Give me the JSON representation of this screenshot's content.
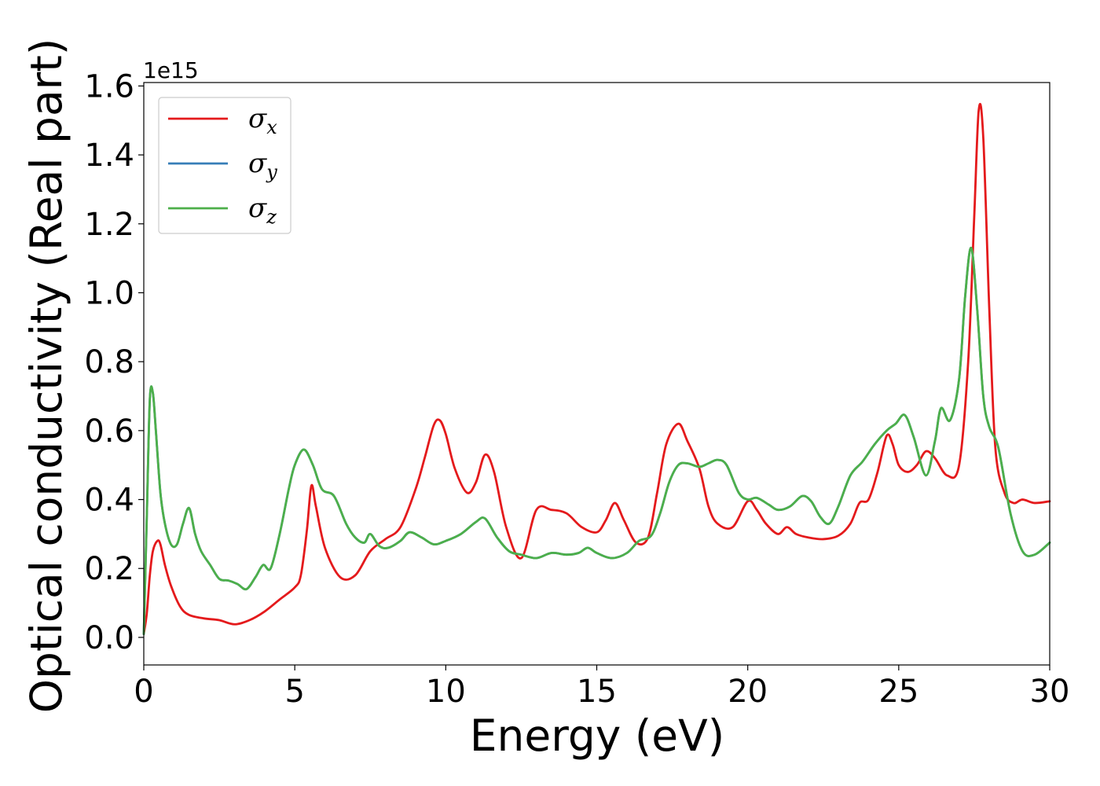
{
  "chart_data": {
    "type": "line",
    "xlabel": "Energy (eV)",
    "ylabel": "Optical conductivity (Real part)",
    "y_offset_label": "1e15",
    "xlim": [
      0,
      30
    ],
    "ylim": [
      -0.08,
      1.61
    ],
    "xticks": [
      0,
      5,
      10,
      15,
      20,
      25,
      30
    ],
    "xtick_labels": [
      "0",
      "5",
      "10",
      "15",
      "20",
      "25",
      "30"
    ],
    "yticks": [
      0.0,
      0.2,
      0.4,
      0.6,
      0.8,
      1.0,
      1.2,
      1.4,
      1.6
    ],
    "ytick_labels": [
      "0.0",
      "0.2",
      "0.4",
      "0.6",
      "0.8",
      "1.0",
      "1.2",
      "1.4",
      "1.6"
    ],
    "grid": false,
    "legend_position": "top-left",
    "series": [
      {
        "name": "σx",
        "legend_symbol": "σ",
        "legend_sub": "x",
        "color": "#e41a1c",
        "x": [
          0,
          0.1,
          0.2,
          0.3,
          0.45,
          0.55,
          0.7,
          0.9,
          1.2,
          1.5,
          2.0,
          2.5,
          3.0,
          3.5,
          4.0,
          4.5,
          5.0,
          5.2,
          5.4,
          5.55,
          5.7,
          6.0,
          6.5,
          7.0,
          7.5,
          8.0,
          8.5,
          9.0,
          9.3,
          9.6,
          9.8,
          10.0,
          10.3,
          10.7,
          11.0,
          11.3,
          11.6,
          12.0,
          12.5,
          13.0,
          13.5,
          14.0,
          14.5,
          15.0,
          15.3,
          15.6,
          15.9,
          16.3,
          16.7,
          17.0,
          17.3,
          17.7,
          18.0,
          18.4,
          18.7,
          19.0,
          19.5,
          20.0,
          20.3,
          20.6,
          21.0,
          21.3,
          21.6,
          22.0,
          22.5,
          23.0,
          23.4,
          23.7,
          24.0,
          24.3,
          24.6,
          24.8,
          25.0,
          25.3,
          25.6,
          25.9,
          26.2,
          26.6,
          27.0,
          27.3,
          27.5,
          27.65,
          27.8,
          28.0,
          28.2,
          28.5,
          28.8,
          29.1,
          29.5,
          30.0
        ],
        "values": [
          0.01,
          0.07,
          0.18,
          0.25,
          0.28,
          0.27,
          0.21,
          0.15,
          0.09,
          0.065,
          0.055,
          0.05,
          0.038,
          0.05,
          0.075,
          0.11,
          0.145,
          0.18,
          0.31,
          0.44,
          0.38,
          0.26,
          0.175,
          0.18,
          0.25,
          0.285,
          0.32,
          0.43,
          0.52,
          0.615,
          0.63,
          0.59,
          0.49,
          0.42,
          0.45,
          0.53,
          0.48,
          0.32,
          0.23,
          0.37,
          0.37,
          0.36,
          0.32,
          0.305,
          0.34,
          0.39,
          0.34,
          0.275,
          0.29,
          0.42,
          0.56,
          0.62,
          0.57,
          0.49,
          0.38,
          0.33,
          0.32,
          0.395,
          0.37,
          0.33,
          0.3,
          0.32,
          0.3,
          0.29,
          0.285,
          0.295,
          0.33,
          0.39,
          0.4,
          0.48,
          0.585,
          0.56,
          0.5,
          0.48,
          0.5,
          0.54,
          0.52,
          0.47,
          0.5,
          0.8,
          1.22,
          1.53,
          1.45,
          0.95,
          0.55,
          0.42,
          0.39,
          0.4,
          0.39,
          0.395
        ]
      },
      {
        "name": "σy",
        "legend_symbol": "σ",
        "legend_sub": "y",
        "color": "#377eb8",
        "x": [
          0,
          0.1,
          0.2,
          0.3,
          0.4,
          0.55,
          0.7,
          0.9,
          1.1,
          1.3,
          1.5,
          1.7,
          1.9,
          2.2,
          2.5,
          2.8,
          3.1,
          3.4,
          3.7,
          3.95,
          4.2,
          4.5,
          4.8,
          5.0,
          5.3,
          5.6,
          5.9,
          6.3,
          6.7,
          7.0,
          7.3,
          7.5,
          7.8,
          8.1,
          8.5,
          8.8,
          9.2,
          9.6,
          10.0,
          10.5,
          11.0,
          11.3,
          11.7,
          12.1,
          12.5,
          13.0,
          13.5,
          14.0,
          14.4,
          14.7,
          15.0,
          15.5,
          16.0,
          16.4,
          16.8,
          17.1,
          17.4,
          17.7,
          18.0,
          18.4,
          18.7,
          19.0,
          19.3,
          19.7,
          20.0,
          20.3,
          20.7,
          21.0,
          21.4,
          21.8,
          22.1,
          22.4,
          22.7,
          23.0,
          23.4,
          23.8,
          24.2,
          24.6,
          24.9,
          25.2,
          25.5,
          25.9,
          26.2,
          26.4,
          26.7,
          27.0,
          27.2,
          27.4,
          27.6,
          27.8,
          28.0,
          28.3,
          28.7,
          29.1,
          29.5,
          30.0
        ],
        "values": [
          0.01,
          0.35,
          0.69,
          0.71,
          0.6,
          0.42,
          0.33,
          0.27,
          0.27,
          0.33,
          0.375,
          0.3,
          0.25,
          0.21,
          0.17,
          0.165,
          0.155,
          0.14,
          0.175,
          0.21,
          0.2,
          0.3,
          0.43,
          0.5,
          0.545,
          0.5,
          0.43,
          0.41,
          0.33,
          0.29,
          0.275,
          0.3,
          0.265,
          0.26,
          0.28,
          0.305,
          0.29,
          0.27,
          0.28,
          0.3,
          0.335,
          0.345,
          0.29,
          0.25,
          0.24,
          0.23,
          0.245,
          0.24,
          0.245,
          0.26,
          0.245,
          0.23,
          0.245,
          0.28,
          0.295,
          0.36,
          0.45,
          0.5,
          0.505,
          0.495,
          0.505,
          0.515,
          0.5,
          0.42,
          0.4,
          0.405,
          0.385,
          0.37,
          0.38,
          0.41,
          0.395,
          0.35,
          0.33,
          0.38,
          0.47,
          0.51,
          0.56,
          0.6,
          0.62,
          0.645,
          0.58,
          0.47,
          0.57,
          0.665,
          0.63,
          0.75,
          0.99,
          1.13,
          0.95,
          0.7,
          0.61,
          0.55,
          0.36,
          0.25,
          0.24,
          0.275
        ]
      },
      {
        "name": "σz",
        "legend_symbol": "σ",
        "legend_sub": "z",
        "color": "#4daf4a",
        "x": [
          0,
          0.1,
          0.2,
          0.3,
          0.4,
          0.55,
          0.7,
          0.9,
          1.1,
          1.3,
          1.5,
          1.7,
          1.9,
          2.2,
          2.5,
          2.8,
          3.1,
          3.4,
          3.7,
          3.95,
          4.2,
          4.5,
          4.8,
          5.0,
          5.3,
          5.6,
          5.9,
          6.3,
          6.7,
          7.0,
          7.3,
          7.5,
          7.8,
          8.1,
          8.5,
          8.8,
          9.2,
          9.6,
          10.0,
          10.5,
          11.0,
          11.3,
          11.7,
          12.1,
          12.5,
          13.0,
          13.5,
          14.0,
          14.4,
          14.7,
          15.0,
          15.5,
          16.0,
          16.4,
          16.8,
          17.1,
          17.4,
          17.7,
          18.0,
          18.4,
          18.7,
          19.0,
          19.3,
          19.7,
          20.0,
          20.3,
          20.7,
          21.0,
          21.4,
          21.8,
          22.1,
          22.4,
          22.7,
          23.0,
          23.4,
          23.8,
          24.2,
          24.6,
          24.9,
          25.2,
          25.5,
          25.9,
          26.2,
          26.4,
          26.7,
          27.0,
          27.2,
          27.4,
          27.6,
          27.8,
          28.0,
          28.3,
          28.7,
          29.1,
          29.5,
          30.0
        ],
        "values": [
          0.01,
          0.35,
          0.69,
          0.71,
          0.6,
          0.42,
          0.33,
          0.27,
          0.27,
          0.33,
          0.375,
          0.3,
          0.25,
          0.21,
          0.17,
          0.165,
          0.155,
          0.14,
          0.175,
          0.21,
          0.2,
          0.3,
          0.43,
          0.5,
          0.545,
          0.5,
          0.43,
          0.41,
          0.33,
          0.29,
          0.275,
          0.3,
          0.265,
          0.26,
          0.28,
          0.305,
          0.29,
          0.27,
          0.28,
          0.3,
          0.335,
          0.345,
          0.29,
          0.25,
          0.24,
          0.23,
          0.245,
          0.24,
          0.245,
          0.26,
          0.245,
          0.23,
          0.245,
          0.28,
          0.295,
          0.36,
          0.45,
          0.5,
          0.505,
          0.495,
          0.505,
          0.515,
          0.5,
          0.42,
          0.4,
          0.405,
          0.385,
          0.37,
          0.38,
          0.41,
          0.395,
          0.35,
          0.33,
          0.38,
          0.47,
          0.51,
          0.56,
          0.6,
          0.62,
          0.645,
          0.58,
          0.47,
          0.57,
          0.665,
          0.63,
          0.75,
          0.99,
          1.13,
          0.95,
          0.7,
          0.61,
          0.55,
          0.36,
          0.25,
          0.24,
          0.275
        ]
      }
    ]
  }
}
